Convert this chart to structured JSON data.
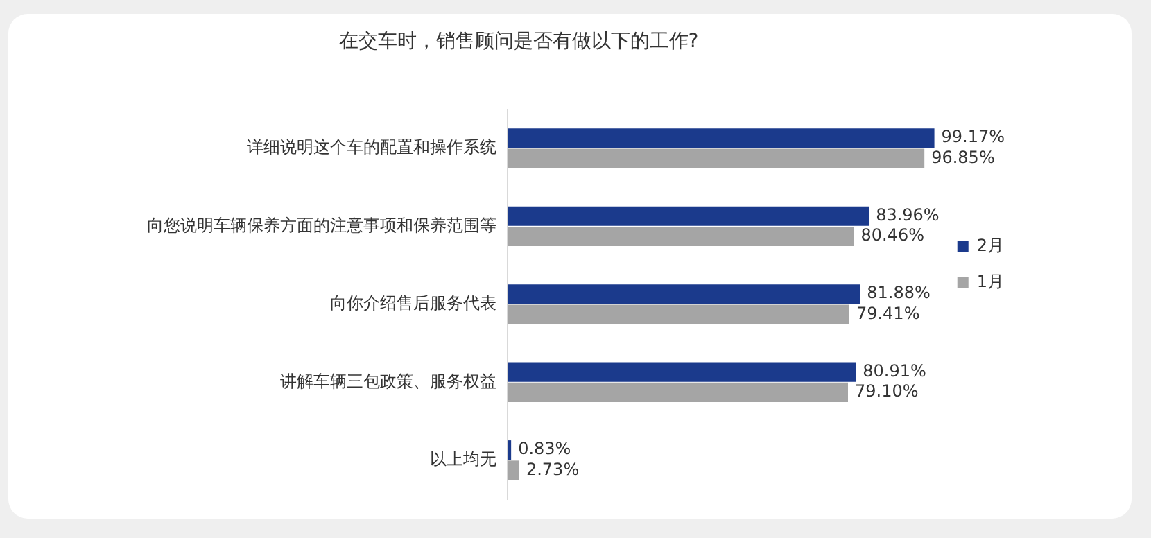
{
  "chart_data": {
    "type": "bar",
    "orientation": "horizontal",
    "title": "在交车时，销售顾问是否有做以下的工作?",
    "categories": [
      "详细说明这个车的配置和操作系统",
      "向您说明车辆保养方面的注意事项和保养范围等",
      "向你介绍售后服务代表",
      "讲解车辆三包政策、服务权益",
      "以上均无"
    ],
    "series": [
      {
        "name": "2月",
        "color": "#1b3a8c",
        "values": [
          99.17,
          83.96,
          81.88,
          80.91,
          0.83
        ],
        "value_labels": [
          "99.17%",
          "83.96%",
          "81.88%",
          "80.91%",
          "0.83%"
        ]
      },
      {
        "name": "1月",
        "color": "#a5a5a5",
        "values": [
          96.85,
          80.46,
          79.41,
          79.1,
          2.73
        ],
        "value_labels": [
          "96.85%",
          "80.46%",
          "79.41%",
          "79.10%",
          "2.73%"
        ]
      }
    ],
    "legend": "right",
    "grid": false
  }
}
